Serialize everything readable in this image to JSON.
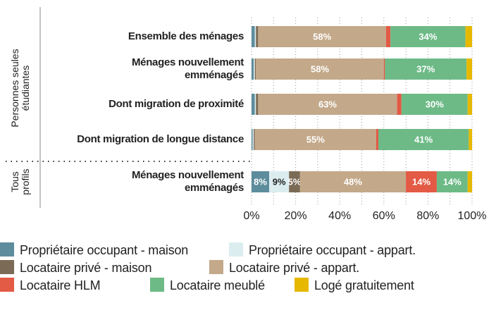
{
  "chart_data": {
    "type": "stacked_barh",
    "groups": [
      {
        "label": "Personnes seules\nétudiantes",
        "rows": [
          0,
          1,
          2,
          3
        ]
      },
      {
        "label": "Tous\nprofils",
        "rows": [
          4
        ]
      }
    ],
    "categories": [
      "Ensemble des ménages",
      "Ménages nouvellement\nemménagés",
      "Dont migration de proximité",
      "Dont migration de longue distance",
      "Ménages nouvellement\nemménagés"
    ],
    "series": [
      {
        "name": "Propriétaire occupant - maison",
        "color": "#5d8d9c",
        "values": [
          1.5,
          1,
          1.5,
          0.5,
          8
        ],
        "value_labels": [
          null,
          null,
          null,
          null,
          "8%"
        ]
      },
      {
        "name": "Propriétaire occupant - appart.",
        "color": "#dcedf0",
        "values": [
          0.5,
          0.5,
          0.5,
          0.5,
          9
        ],
        "value_labels": [
          null,
          null,
          null,
          null,
          "9%"
        ]
      },
      {
        "name": "Locataire privé - maison",
        "color": "#7b6b56",
        "values": [
          1,
          0.5,
          1,
          0.5,
          5
        ],
        "value_labels": [
          null,
          null,
          null,
          null,
          "5%"
        ]
      },
      {
        "name": "Locataire privé - appart.",
        "color": "#c3a98a",
        "values": [
          58,
          58,
          63,
          55,
          48
        ],
        "value_labels": [
          "58%",
          "58%",
          "63%",
          "55%",
          "48%"
        ]
      },
      {
        "name": "Locataire HLM",
        "color": "#e35a45",
        "values": [
          2,
          0.5,
          2,
          1,
          14
        ],
        "value_labels": [
          null,
          null,
          null,
          null,
          "14%"
        ]
      },
      {
        "name": "Locataire meublé",
        "color": "#6dba86",
        "values": [
          34,
          37,
          30,
          41,
          14
        ],
        "value_labels": [
          "34%",
          "37%",
          "30%",
          "41%",
          "14%"
        ]
      },
      {
        "name": "Logé gratuitement",
        "color": "#e6b800",
        "values": [
          3,
          2.5,
          2,
          1.5,
          2
        ],
        "value_labels": [
          null,
          null,
          null,
          null,
          null
        ]
      }
    ],
    "xlim": [
      0,
      100
    ],
    "xticks": [
      {
        "value": 0,
        "label": "0%"
      },
      {
        "value": 20,
        "label": "20%"
      },
      {
        "value": 40,
        "label": "40%"
      },
      {
        "value": 60,
        "label": "60%"
      },
      {
        "value": 80,
        "label": "80%"
      },
      {
        "value": 100,
        "label": "100%"
      }
    ],
    "xminorticks": [
      10,
      30,
      50,
      70,
      90
    ],
    "grid": true
  }
}
